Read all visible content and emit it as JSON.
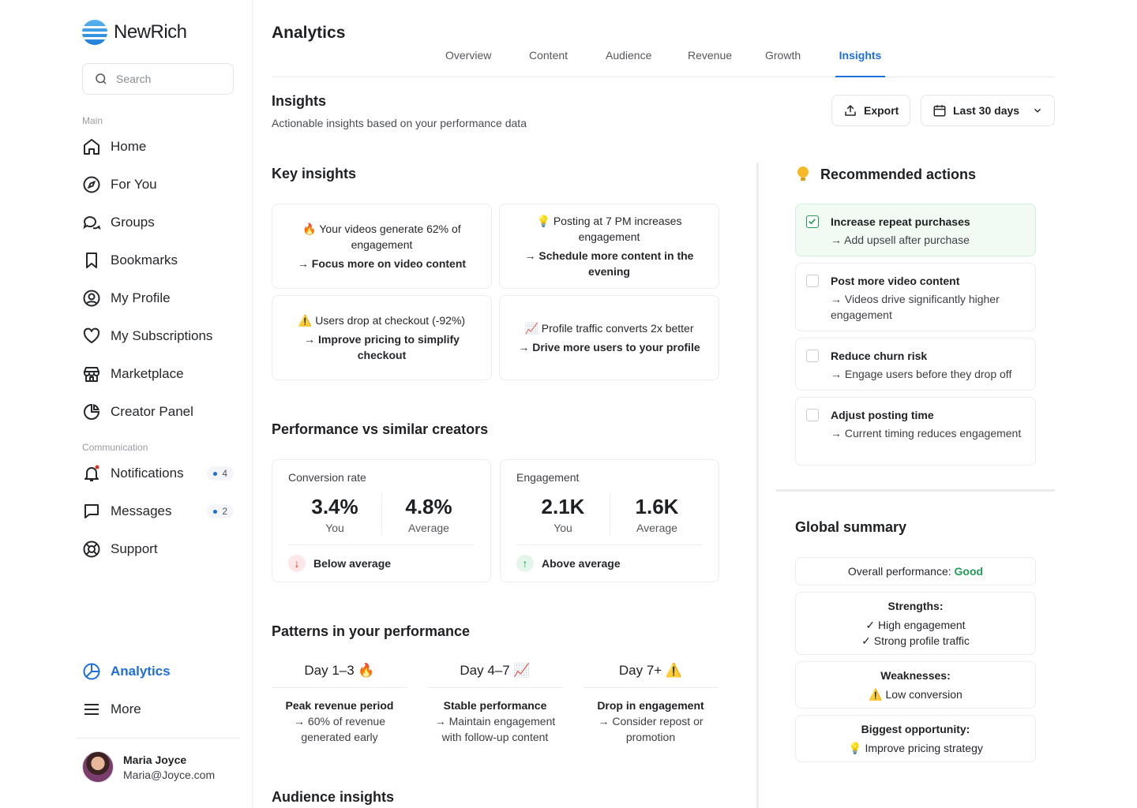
{
  "brand": {
    "name": "NewRich"
  },
  "search": {
    "placeholder": "Search"
  },
  "sidebar": {
    "main_label": "Main",
    "main_items": [
      {
        "label": "Home",
        "icon": "home-icon"
      },
      {
        "label": "For You",
        "icon": "compass-icon"
      },
      {
        "label": "Groups",
        "icon": "chat-bubbles-icon"
      },
      {
        "label": "Bookmarks",
        "icon": "bookmark-icon"
      },
      {
        "label": "My Profile",
        "icon": "user-circle-icon"
      },
      {
        "label": "My Subscriptions",
        "icon": "heart-icon"
      },
      {
        "label": "Marketplace",
        "icon": "store-icon"
      },
      {
        "label": "Creator Panel",
        "icon": "pie-chart-icon"
      }
    ],
    "comm_label": "Communication",
    "comm_items": [
      {
        "label": "Notifications",
        "icon": "bell-icon",
        "badge": "4"
      },
      {
        "label": "Messages",
        "icon": "message-icon",
        "badge": "2"
      },
      {
        "label": "Support",
        "icon": "lifebuoy-icon"
      }
    ],
    "bottom_items": [
      {
        "label": "Analytics",
        "icon": "analytics-icon",
        "active": true
      },
      {
        "label": "More",
        "icon": "menu-icon"
      }
    ],
    "user": {
      "name": "Maria Joyce",
      "email": "Maria@Joyce.com"
    }
  },
  "header": {
    "title": "Analytics",
    "tabs": [
      "Overview",
      "Content",
      "Audience",
      "Revenue",
      "Growth",
      "Insights"
    ],
    "active_tab": "Insights"
  },
  "page": {
    "title": "Insights",
    "subtitle": "Actionable insights based on your performance data",
    "export_label": "Export",
    "range_label": "Last 30 days"
  },
  "key_insights": {
    "title": "Key insights",
    "cards": [
      {
        "text": "🔥 Your videos generate 62% of engagement",
        "action": "→ Focus more on video content"
      },
      {
        "text": "💡 Posting at 7 PM increases engagement",
        "action": "→ Schedule more content in the evening"
      },
      {
        "text": "⚠️ Users drop at checkout (-92%)",
        "action": "→ Improve pricing to simplify checkout"
      },
      {
        "text": "📈 Profile traffic converts 2x better",
        "action": "→ Drive more users to your profile"
      }
    ]
  },
  "performance": {
    "title": "Performance vs similar creators",
    "cards": [
      {
        "label": "Conversion rate",
        "you": "3.4%",
        "you_label": "You",
        "avg": "4.8%",
        "avg_label": "Average",
        "status": "Below average",
        "arrow": "↓"
      },
      {
        "label": "Engagement",
        "you": "2.1K",
        "you_label": "You",
        "avg": "1.6K",
        "avg_label": "Average",
        "status": "Above average",
        "arrow": "↑"
      }
    ]
  },
  "patterns": {
    "title": "Patterns in your performance",
    "items": [
      {
        "head": "Day 1–3 🔥",
        "title": "Peak revenue period",
        "desc": "→ 60% of revenue generated early"
      },
      {
        "head": "Day 4–7 📈",
        "title": "Stable performance",
        "desc": "→ Maintain engagement with follow-up content"
      },
      {
        "head": "Day 7+ ⚠️",
        "title": "Drop in engagement",
        "desc": "→ Consider repost or promotion"
      }
    ]
  },
  "audience": {
    "title": "Audience insights"
  },
  "recommended": {
    "title": "Recommended actions",
    "items": [
      {
        "title": "Increase repeat purchases",
        "desc": "→ Add upsell after purchase",
        "done": true
      },
      {
        "title": "Post more video content",
        "desc": "→ Videos drive significantly higher engagement",
        "done": false
      },
      {
        "title": "Reduce churn risk",
        "desc": "→ Engage users before they drop off",
        "done": false
      },
      {
        "title": "Adjust posting time",
        "desc": "→ Current timing reduces engagement",
        "done": false
      }
    ]
  },
  "summary": {
    "title": "Global summary",
    "overall_label": "Overall performance:",
    "overall_value": "Good",
    "strengths_label": "Strengths:",
    "strengths": [
      "✓ High engagement",
      "✓ Strong profile traffic"
    ],
    "weaknesses_label": "Weaknesses:",
    "weaknesses": [
      "⚠️ Low conversion"
    ],
    "opportunity_label": "Biggest opportunity:",
    "opportunity": "💡 Improve pricing strategy"
  },
  "colors": {
    "accent": "#1e6fd9",
    "good": "#1f9d55",
    "bad": "#d9342b"
  }
}
